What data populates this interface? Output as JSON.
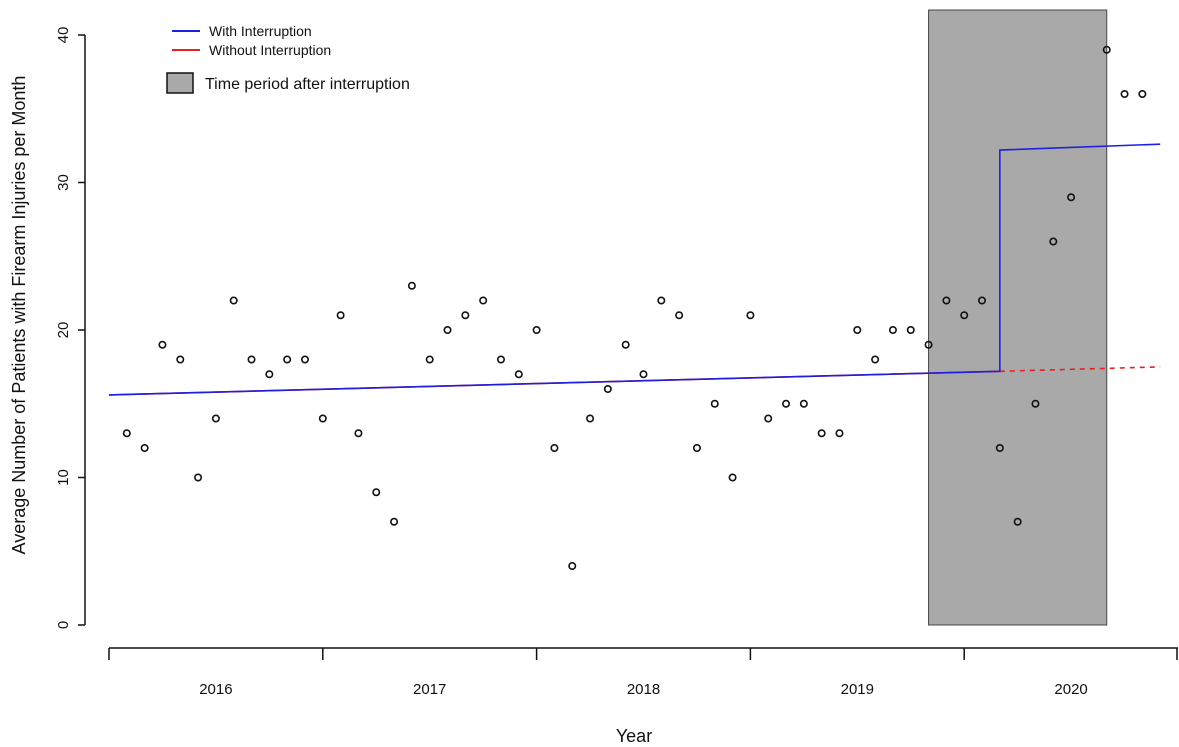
{
  "chart_data": {
    "type": "scatter",
    "xlabel": "Year",
    "ylabel": "Average Number of Patients with Firearm Injuries per Month",
    "ylim": [
      0,
      40
    ],
    "yticks": [
      0,
      10,
      20,
      30,
      40
    ],
    "xlim": [
      2016.0,
      2021.0
    ],
    "year_labels": [
      "2016",
      "2017",
      "2018",
      "2019",
      "2020"
    ],
    "legend": {
      "placement": "top-left",
      "with_interruption": "With Interruption",
      "without_interruption": "Without Interruption",
      "period": "Time period after interruption"
    },
    "colors": {
      "with_interruption": "#1f1fe0",
      "without_interruption": "#e82020",
      "shade": "#a9a9a9",
      "points": "#111111"
    },
    "points": {
      "x": [
        "2016-02",
        "2016-03",
        "2016-04",
        "2016-05",
        "2016-06",
        "2016-07",
        "2016-08",
        "2016-09",
        "2016-10",
        "2016-11",
        "2016-12",
        "2017-01",
        "2017-02",
        "2017-03",
        "2017-04",
        "2017-05",
        "2017-06",
        "2017-07",
        "2017-08",
        "2017-09",
        "2017-10",
        "2017-11",
        "2017-12",
        "2018-01",
        "2018-02",
        "2018-03",
        "2018-04",
        "2018-05",
        "2018-06",
        "2018-07",
        "2018-08",
        "2018-09",
        "2018-10",
        "2018-11",
        "2018-12",
        "2019-01",
        "2019-02",
        "2019-03",
        "2019-04",
        "2019-05",
        "2019-06",
        "2019-07",
        "2019-08",
        "2019-09",
        "2019-10",
        "2019-11",
        "2019-12",
        "2020-01",
        "2020-02",
        "2020-03",
        "2020-04",
        "2020-05",
        "2020-06",
        "2020-07",
        "2020-08",
        "2020-09",
        "2020-10",
        "2020-11",
        "2020-12"
      ],
      "y": [
        13,
        12,
        19,
        18,
        10,
        14,
        22,
        18,
        17,
        18,
        18,
        14,
        21,
        13,
        9,
        7,
        23,
        18,
        20,
        21,
        22,
        18,
        17,
        20,
        12,
        4,
        14,
        16,
        19,
        17,
        22,
        21,
        12,
        15,
        10,
        21,
        14,
        15,
        15,
        13,
        13,
        20,
        18,
        20,
        20,
        19,
        22,
        21,
        22,
        12,
        7,
        15,
        26,
        29,
        null,
        39,
        36,
        36,
        null
      ]
    },
    "series": [
      {
        "name": "With Interruption",
        "x": [
          "2016-01",
          "2020-03",
          "2020-03",
          "2020-12"
        ],
        "y": [
          15.6,
          17.2,
          32.2,
          32.6
        ]
      },
      {
        "name": "Without Interruption",
        "x": [
          "2016-01",
          "2020-03",
          "2020-12"
        ],
        "y": [
          15.6,
          17.2,
          17.5
        ]
      }
    ],
    "shaded_period": [
      "2019-11",
      "2020-09"
    ],
    "grid": false
  }
}
